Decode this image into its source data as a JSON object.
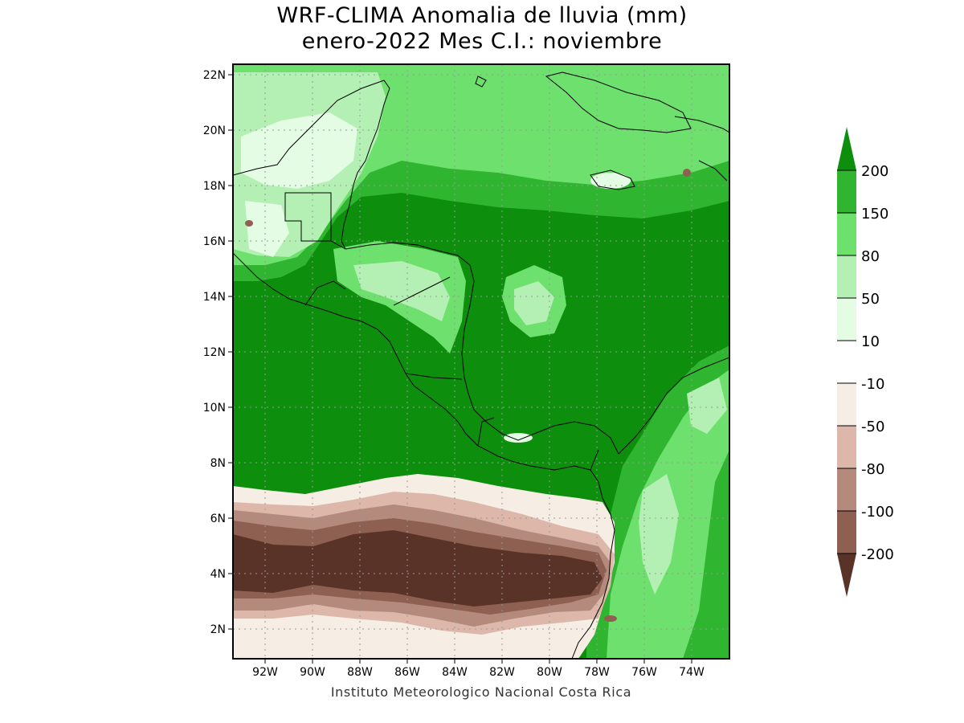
{
  "title_line1": "WRF-CLIMA Anomalia de lluvia (mm)",
  "title_line2": "enero-2022 Mes C.I.: noviembre",
  "footer": "Instituto Meteorologico Nacional Costa Rica",
  "lat_labels": [
    "2N",
    "4N",
    "6N",
    "8N",
    "10N",
    "12N",
    "14N",
    "16N",
    "18N",
    "20N",
    "22N"
  ],
  "lon_labels": [
    "92W",
    "90W",
    "88W",
    "86W",
    "84W",
    "82W",
    "80W",
    "78W",
    "76W",
    "74W"
  ],
  "legend": {
    "labels": [
      "200",
      "150",
      "80",
      "50",
      "10",
      "-10",
      "-50",
      "-80",
      "-100",
      "-200"
    ],
    "colors": {
      "gt200": "#0d8f0d",
      "150_200": "#2fb52f",
      "80_150": "#6ee06e",
      "50_80": "#b4f0b4",
      "10_50": "#e4fbe4",
      "neutral": "#ffffff",
      "m50_m10": "#f6ede4",
      "m80_m50": "#dcb7aa",
      "m100_m80": "#b48a7c",
      "m200_m100": "#8d6052",
      "lt_m200": "#5a3328"
    }
  }
}
